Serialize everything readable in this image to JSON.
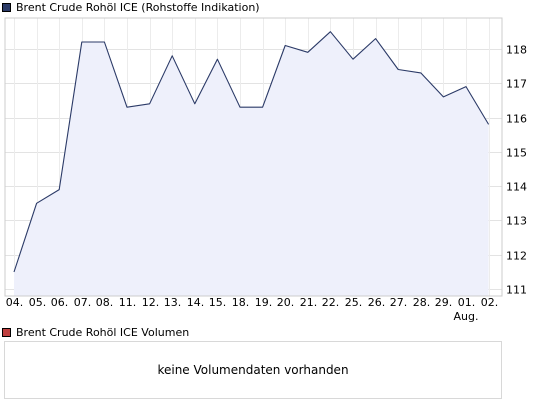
{
  "legend": {
    "price_label": "Brent Crude Rohöl ICE (Rohstoffe Indikation)",
    "price_color": "#2b3a67",
    "volume_label": "Brent Crude Rohöl ICE Volumen",
    "volume_color": "#c04040"
  },
  "volume": {
    "message": "keine Volumendaten vorhanden"
  },
  "chart_data": {
    "type": "area",
    "categories": [
      "04.",
      "05.",
      "06.",
      "07.",
      "08.",
      "11.",
      "12.",
      "13.",
      "14.",
      "15.",
      "18.",
      "19.",
      "20.",
      "21.",
      "22.",
      "25.",
      "26.",
      "27.",
      "28.",
      "29.",
      "01.",
      "02."
    ],
    "month_label": {
      "index": 20,
      "text": "Aug."
    },
    "series": [
      {
        "values": [
          111.5,
          113.5,
          113.9,
          118.2,
          118.2,
          116.3,
          116.4,
          117.8,
          116.4,
          117.7,
          116.3,
          116.3,
          118.1,
          117.9,
          118.5,
          117.7,
          118.3,
          117.4,
          117.3,
          116.6,
          116.9,
          115.8
        ]
      }
    ],
    "yticks": [
      111,
      112,
      113,
      114,
      115,
      116,
      117,
      118
    ],
    "ylim": [
      110.8,
      118.9
    ],
    "grid": true,
    "y_axis_position": "right",
    "line_color": "#2b3a67",
    "fill_color": "#eef0fb"
  }
}
